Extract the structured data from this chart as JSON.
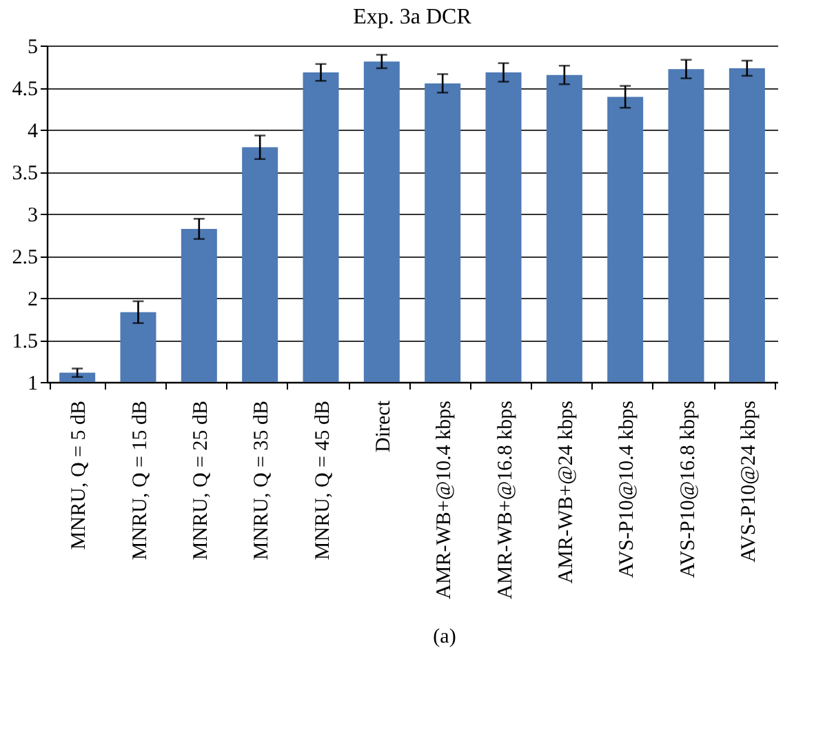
{
  "chart_data": {
    "type": "bar",
    "title": "Exp. 3a DCR",
    "categories": [
      "MNRU, Q = 5 dB",
      "MNRU, Q = 15 dB",
      "MNRU, Q = 25 dB",
      "MNRU, Q = 35 dB",
      "MNRU, Q = 45 dB",
      "Direct",
      "AMR-WB+@10.4 kbps",
      "AMR-WB+@16.8 kbps",
      "AMR-WB+@24 kbps",
      "AVS-P10@10.4 kbps",
      "AVS-P10@16.8 kbps",
      "AVS-P10@24 kbps"
    ],
    "values": [
      1.11,
      1.83,
      2.82,
      3.79,
      4.68,
      4.81,
      4.55,
      4.68,
      4.65,
      4.39,
      4.72,
      4.73
    ],
    "errors": [
      0.05,
      0.13,
      0.12,
      0.14,
      0.1,
      0.08,
      0.11,
      0.11,
      0.11,
      0.13,
      0.11,
      0.09
    ],
    "color": "#4e7ab5",
    "ylim": [
      1,
      5
    ],
    "yticks": [
      1,
      1.5,
      2,
      2.5,
      3,
      3.5,
      4,
      4.5,
      5
    ],
    "grid": "y",
    "annotations": [
      "(a)"
    ]
  }
}
